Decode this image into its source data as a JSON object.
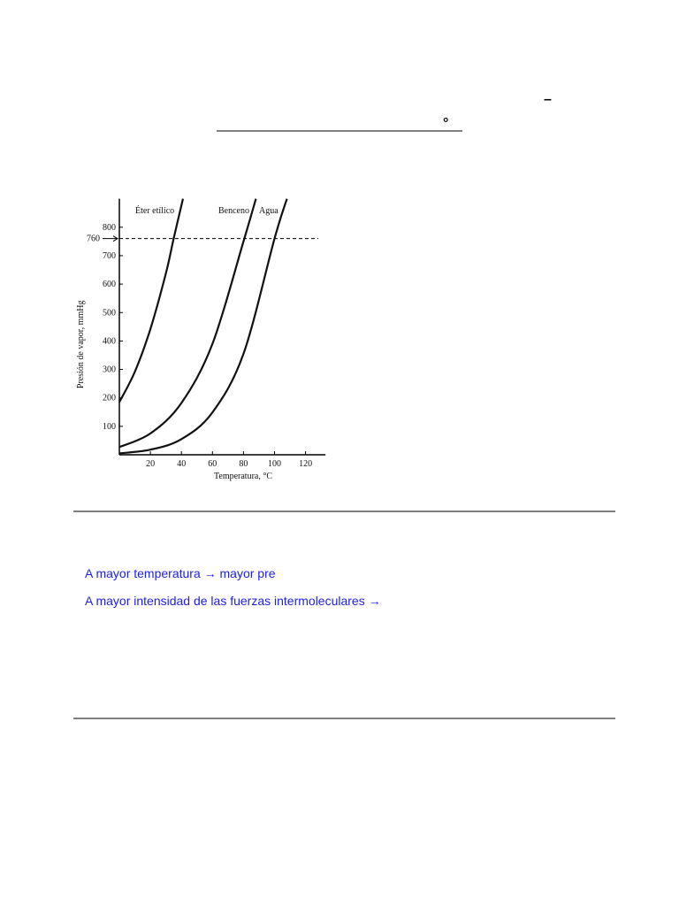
{
  "document": {
    "marks": [
      "–",
      "°"
    ],
    "lines": [
      "A mayor temperatura  →  mayor pre",
      "A mayor intensidad de las fuerzas intermoleculares →"
    ]
  },
  "chart_data": {
    "type": "line",
    "xlabel": "Temperatura, °C",
    "ylabel": "Presión de vapor, mmHg",
    "xlim": [
      0,
      130
    ],
    "ylim": [
      0,
      900
    ],
    "xticks": [
      20,
      40,
      60,
      80,
      100,
      120
    ],
    "yticks": [
      100,
      200,
      300,
      400,
      500,
      600,
      700,
      800
    ],
    "hline": 760,
    "series": [
      {
        "name": "Éter etílico",
        "color": "#111111",
        "x": [
          0,
          10,
          20,
          30,
          35,
          41
        ],
        "values": [
          185,
          292,
          442,
          638,
          760,
          900
        ]
      },
      {
        "name": "Benceno",
        "color": "#111111",
        "x": [
          0,
          20,
          40,
          60,
          80,
          88
        ],
        "values": [
          27,
          75,
          182,
          390,
          750,
          900
        ]
      },
      {
        "name": "Agua",
        "color": "#111111",
        "x": [
          0,
          20,
          40,
          60,
          80,
          100,
          108
        ],
        "values": [
          5,
          18,
          55,
          149,
          355,
          760,
          900
        ]
      }
    ]
  }
}
